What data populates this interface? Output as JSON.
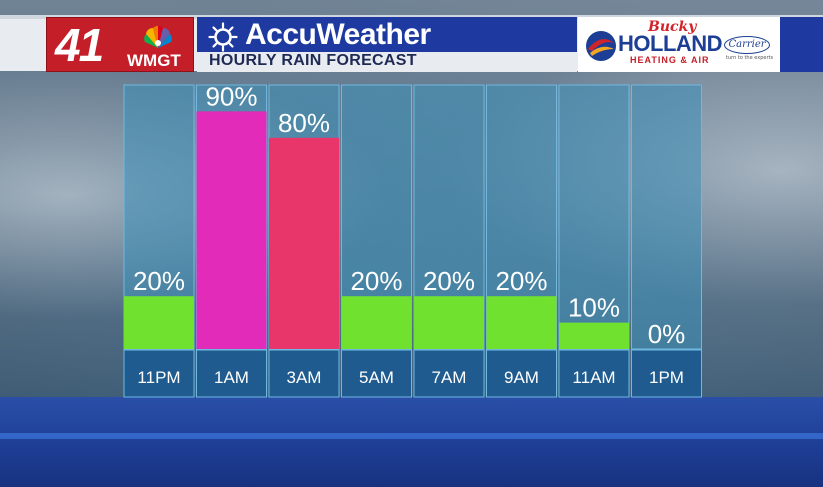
{
  "header": {
    "station_number": "41",
    "station_call": "WMGT",
    "brand": "AccuWeather",
    "subtitle": "HOURLY RAIN FORECAST"
  },
  "sponsor": {
    "script": "Bucky",
    "name": "HOLLAND",
    "tagline": "HEATING & AIR",
    "partner": "Carrier",
    "partner_tagline": "turn to the experts"
  },
  "colors": {
    "title_bar": "#1e3aa0",
    "station_red": "#c41e28",
    "column_fill": "#3d8fb8",
    "green": "#6fe12e",
    "magenta": "#e22bb8",
    "pink_red": "#e8356a"
  },
  "chart_data": {
    "type": "bar",
    "title": "HOURLY RAIN FORECAST",
    "xlabel": "",
    "ylabel": "",
    "ylim": [
      0,
      100
    ],
    "categories": [
      "11PM",
      "1AM",
      "3AM",
      "5AM",
      "7AM",
      "9AM",
      "11AM",
      "1PM"
    ],
    "values": [
      20,
      90,
      80,
      20,
      20,
      20,
      10,
      0
    ],
    "labels": [
      "20%",
      "90%",
      "80%",
      "20%",
      "20%",
      "20%",
      "10%",
      "0%"
    ],
    "bar_colors": [
      "#6fe12e",
      "#e22bb8",
      "#e8356a",
      "#6fe12e",
      "#6fe12e",
      "#6fe12e",
      "#6fe12e",
      "#6fe12e"
    ],
    "grid": false,
    "legend": "none"
  }
}
